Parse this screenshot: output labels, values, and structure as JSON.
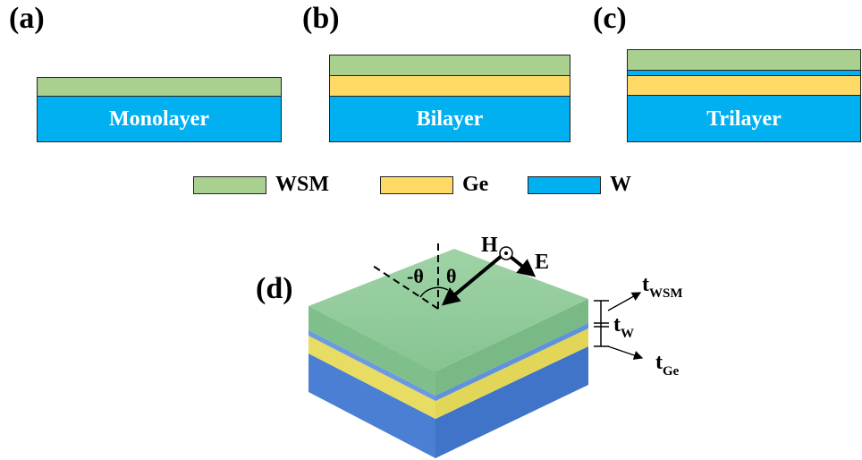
{
  "colors": {
    "wsm": "#a9d08e",
    "ge": "#ffd966",
    "w": "#00b0f0"
  },
  "panels": {
    "a": {
      "label": "(a)",
      "substrate_label": "Monolayer"
    },
    "b": {
      "label": "(b)",
      "substrate_label": "Bilayer"
    },
    "c": {
      "label": "(c)",
      "substrate_label": "Trilayer"
    },
    "d": {
      "label": "(d)"
    }
  },
  "legend": [
    {
      "label": "WSM",
      "color": "#a9d08e"
    },
    {
      "label": "Ge",
      "color": "#ffd966"
    },
    {
      "label": "W",
      "color": "#00b0f0"
    }
  ],
  "diagram_3d": {
    "field_h": "H",
    "field_e": "E",
    "angle_neg": "-θ",
    "angle_pos": "θ",
    "thickness_wsm": {
      "base": "t",
      "sub": "WSM"
    },
    "thickness_w": {
      "base": "t",
      "sub": "W"
    },
    "thickness_ge": {
      "base": "t",
      "sub": "Ge"
    }
  }
}
